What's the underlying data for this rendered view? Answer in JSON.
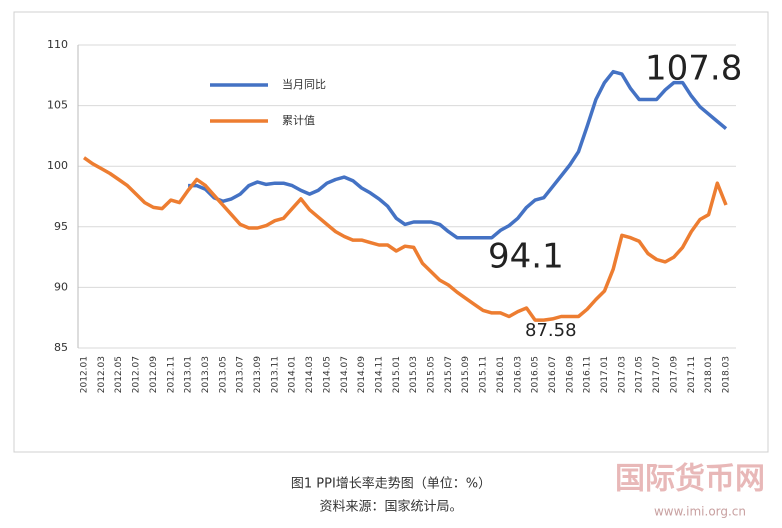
{
  "chart_data": {
    "type": "line",
    "categories": [
      "2012.01",
      null,
      "2012.03",
      null,
      "2012.05",
      null,
      "2012.07",
      null,
      "2012.09",
      null,
      "2012.11",
      null,
      "2013.01",
      null,
      "2013.03",
      null,
      "2013.05",
      null,
      "2013.07",
      null,
      "2013.09",
      null,
      "2013.11",
      null,
      "2014.01",
      null,
      "2014.03",
      null,
      "2014.05",
      null,
      "2014.07",
      null,
      "2014.09",
      null,
      "2014.11",
      null,
      "2015.01",
      null,
      "2015.03",
      null,
      "2015.05",
      null,
      "2015.07",
      null,
      "2015.09",
      null,
      "2015.11",
      null,
      "2016.01",
      null,
      "2016.03",
      null,
      "2016.05",
      null,
      "2016.07",
      null,
      "2016.09",
      null,
      "2016.11",
      null,
      "2017.01",
      null,
      "2017.03",
      null,
      "2017.05",
      null,
      "2017.07",
      null,
      "2017.09",
      null,
      "2017.11",
      null,
      "2018.01",
      null,
      "2018.03"
    ],
    "series": [
      {
        "name": "当月同比",
        "color": "#4472c4",
        "values": [
          null,
          null,
          null,
          null,
          null,
          null,
          null,
          null,
          null,
          null,
          null,
          null,
          98.4,
          98.4,
          98.1,
          97.4,
          97.1,
          97.3,
          97.7,
          98.4,
          98.7,
          98.5,
          98.6,
          98.6,
          98.4,
          98.0,
          97.7,
          98.0,
          98.6,
          98.9,
          99.1,
          98.8,
          98.2,
          97.8,
          97.3,
          96.7,
          95.7,
          95.2,
          95.4,
          95.4,
          95.4,
          95.2,
          94.6,
          94.1,
          94.1,
          94.1,
          94.1,
          94.1,
          94.7,
          95.1,
          95.7,
          96.6,
          97.2,
          97.4,
          98.3,
          99.2,
          100.1,
          101.2,
          103.3,
          105.5,
          106.9,
          107.8,
          107.6,
          106.4,
          105.5,
          105.5,
          105.5,
          106.3,
          106.9,
          106.9,
          105.8,
          104.9,
          104.3,
          103.7,
          103.1
        ]
      },
      {
        "name": "累计值",
        "color": "#ed7d31",
        "values": [
          100.7,
          100.2,
          99.8,
          99.4,
          98.9,
          98.4,
          97.7,
          97.0,
          96.6,
          96.5,
          97.2,
          97.0,
          98.0,
          98.9,
          98.4,
          97.6,
          96.8,
          96.0,
          95.2,
          94.9,
          94.9,
          95.1,
          95.5,
          95.7,
          96.5,
          97.3,
          96.4,
          95.8,
          95.2,
          94.6,
          94.2,
          93.9,
          93.9,
          93.7,
          93.5,
          93.5,
          93.0,
          93.4,
          93.3,
          92.0,
          91.3,
          90.6,
          90.2,
          89.6,
          89.1,
          88.6,
          88.1,
          87.9,
          87.9,
          87.6,
          88.0,
          88.3,
          87.3,
          87.3,
          87.4,
          87.6,
          87.6,
          87.6,
          88.2,
          89.0,
          89.7,
          91.5,
          94.3,
          94.1,
          93.8,
          92.8,
          92.3,
          92.1,
          92.5,
          93.3,
          94.6,
          95.6,
          96.0,
          98.6,
          96.8
        ]
      }
    ],
    "ylim": [
      85,
      110
    ],
    "yticks": [
      85,
      90,
      95,
      100,
      105,
      110
    ],
    "grid": true,
    "annotations": [
      "107.8",
      "94.1",
      "87.58"
    ],
    "caption": "图1  PPI增长率走势图（单位：%）",
    "source": "资料来源：国家统计局。",
    "watermark": "国际货币网",
    "watermark_url": "www.imi.org.cn"
  }
}
